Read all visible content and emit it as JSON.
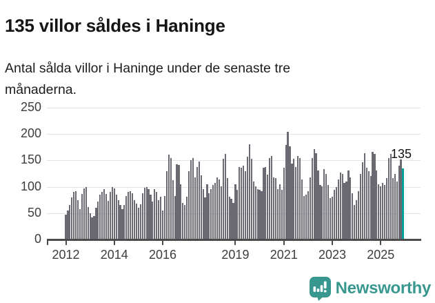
{
  "header": {
    "title": "135 villor såldes i Haninge",
    "subtitle": "Antal sålda villor i Haninge under de senaste tre månaderna."
  },
  "chart_data": {
    "type": "bar",
    "title": "135 villor såldes i Haninge",
    "xlabel": "",
    "ylabel": "",
    "x_unit": "month",
    "x_start": "2012-01",
    "x_end": "2025-12",
    "ylim": [
      0,
      250
    ],
    "grid": "horizontal",
    "legend": "none",
    "yticks": [
      0,
      50,
      100,
      150,
      200,
      250
    ],
    "xticks": [
      "2012",
      "2014",
      "2016",
      "2019",
      "2021",
      "2023",
      "2025"
    ],
    "xtick_years": [
      2012,
      2014,
      2016,
      2019,
      2021,
      2023,
      2025
    ],
    "values": [
      47,
      55,
      66,
      80,
      90,
      92,
      75,
      58,
      86,
      97,
      99,
      62,
      50,
      42,
      45,
      60,
      72,
      85,
      90,
      95,
      87,
      73,
      90,
      100,
      97,
      85,
      75,
      66,
      57,
      65,
      83,
      90,
      92,
      88,
      75,
      68,
      60,
      67,
      88,
      98,
      100,
      96,
      85,
      72,
      95,
      90,
      75,
      81,
      55,
      83,
      129,
      161,
      155,
      112,
      83,
      143,
      141,
      105,
      70,
      66,
      81,
      129,
      150,
      155,
      118,
      138,
      148,
      122,
      95,
      80,
      105,
      88,
      96,
      103,
      107,
      118,
      114,
      101,
      153,
      162,
      116,
      81,
      77,
      70,
      105,
      94,
      138,
      136,
      140,
      129,
      157,
      181,
      153,
      110,
      101,
      96,
      94,
      92,
      136,
      138,
      123,
      155,
      158,
      118,
      116,
      96,
      105,
      94,
      136,
      179,
      204,
      177,
      144,
      153,
      138,
      158,
      155,
      114,
      83,
      85,
      92,
      118,
      155,
      171,
      164,
      131,
      103,
      101,
      133,
      125,
      103,
      79,
      81,
      94,
      99,
      114,
      127,
      125,
      107,
      110,
      131,
      118,
      88,
      66,
      75,
      92,
      125,
      147,
      164,
      136,
      129,
      120,
      166,
      162,
      131,
      105,
      101,
      107,
      103,
      116,
      155,
      162,
      116,
      125,
      110,
      140,
      152,
      135
    ],
    "highlight": {
      "index": 167,
      "value": 135,
      "label": "135"
    },
    "colors": {
      "bar": "#6b6a72",
      "highlight": "#00a09b",
      "grid": "#e3e3e6",
      "axis": "#4b4b4b",
      "tick_label": "#3d3d3d",
      "point_label": "#111111"
    }
  },
  "footer": {
    "brand": "Newsworthy",
    "brand_color": "#38988f",
    "logo_icon": "bar-chart-speech-bubble-icon"
  }
}
